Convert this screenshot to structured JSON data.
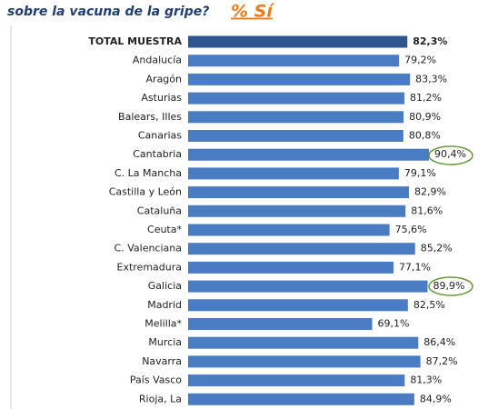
{
  "chart_data": {
    "type": "hbar",
    "title": "sobre la vacuna de la gripe?",
    "subtitle": "% Sí",
    "categories": [
      "TOTAL MUESTRA",
      "Andalucía",
      "Aragón",
      "Asturias",
      "Balears, Illes",
      "Canarias",
      "Cantabria",
      "C. La Mancha",
      "Castilla y León",
      "Cataluña",
      "Ceuta*",
      "C. Valenciana",
      "Extremadura",
      "Galicia",
      "Madrid",
      "Melilla*",
      "Murcia",
      "Navarra",
      "País Vasco",
      "Rioja, La"
    ],
    "values": [
      82.3,
      79.2,
      83.3,
      81.2,
      80.9,
      80.8,
      90.4,
      79.1,
      82.9,
      81.6,
      75.6,
      85.2,
      77.1,
      89.9,
      82.5,
      69.1,
      86.4,
      87.2,
      81.3,
      84.9
    ],
    "value_labels": [
      "82,3%",
      "79,2%",
      "83,3%",
      "81,2%",
      "80,9%",
      "80,8%",
      "90,4%",
      "79,1%",
      "82,9%",
      "81,6%",
      "75,6%",
      "85,2%",
      "77,1%",
      "89,9%",
      "82,5%",
      "69,1%",
      "86,4%",
      "87,2%",
      "81,3%",
      "84,9%"
    ],
    "color": "#4a7cc4",
    "highlight_color": "#2f5591"
  }
}
